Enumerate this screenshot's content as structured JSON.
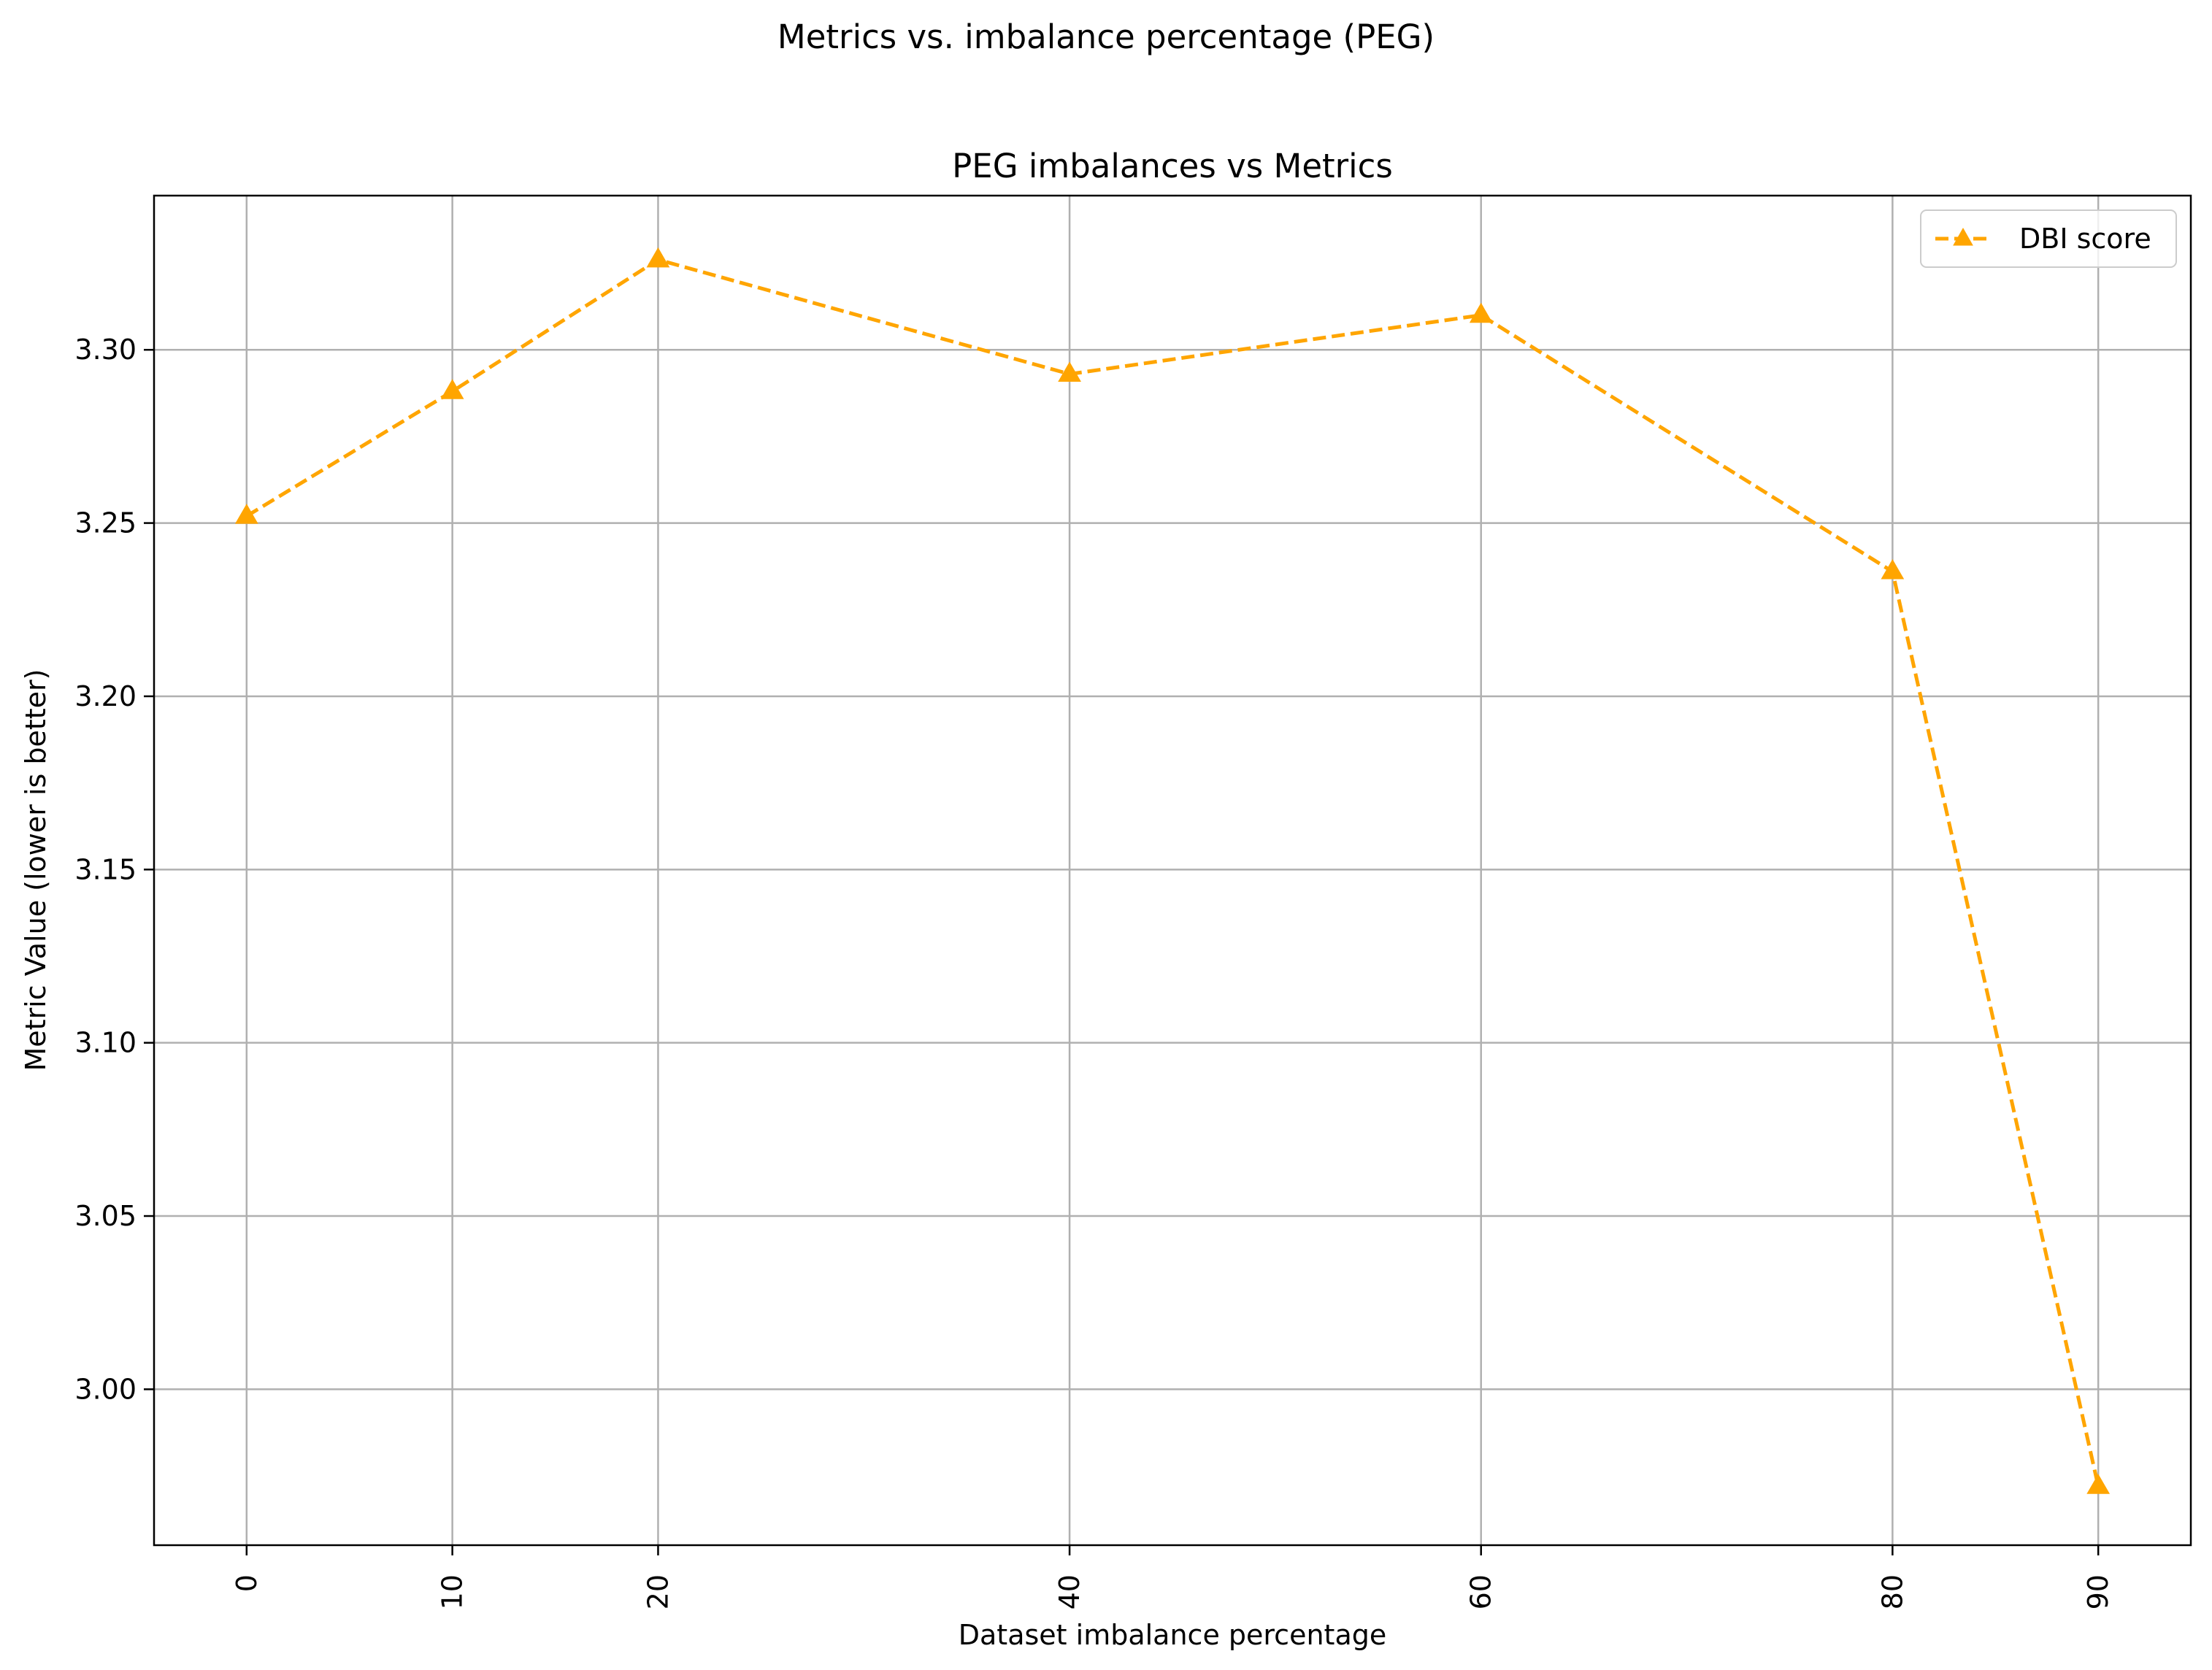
{
  "figure": {
    "suptitle": "Metrics vs. imbalance percentage (PEG)"
  },
  "chart_data": {
    "type": "line",
    "title": "PEG imbalances vs Metrics",
    "xlabel": "Dataset imbalance percentage",
    "ylabel": "Metric Value (lower is better)",
    "x": [
      0,
      10,
      20,
      40,
      60,
      80,
      90
    ],
    "x_tick_labels": [
      "0",
      "10",
      "20",
      "40",
      "60",
      "80",
      "90"
    ],
    "x_tick_rotation": 90,
    "xlim": [
      -4.5,
      94.5
    ],
    "y_ticks": [
      3.0,
      3.05,
      3.1,
      3.15,
      3.2,
      3.25,
      3.3
    ],
    "y_tick_labels": [
      "3.00",
      "3.05",
      "3.10",
      "3.15",
      "3.20",
      "3.25",
      "3.30"
    ],
    "ylim": [
      2.955,
      3.3445
    ],
    "grid": true,
    "legend_position": "upper right",
    "series": [
      {
        "name": "DBI score",
        "values": [
          3.252,
          3.288,
          3.326,
          3.293,
          3.31,
          3.236,
          2.972
        ],
        "color": "#ffa500",
        "line_style": "dashed",
        "marker": "triangle-up"
      }
    ]
  }
}
